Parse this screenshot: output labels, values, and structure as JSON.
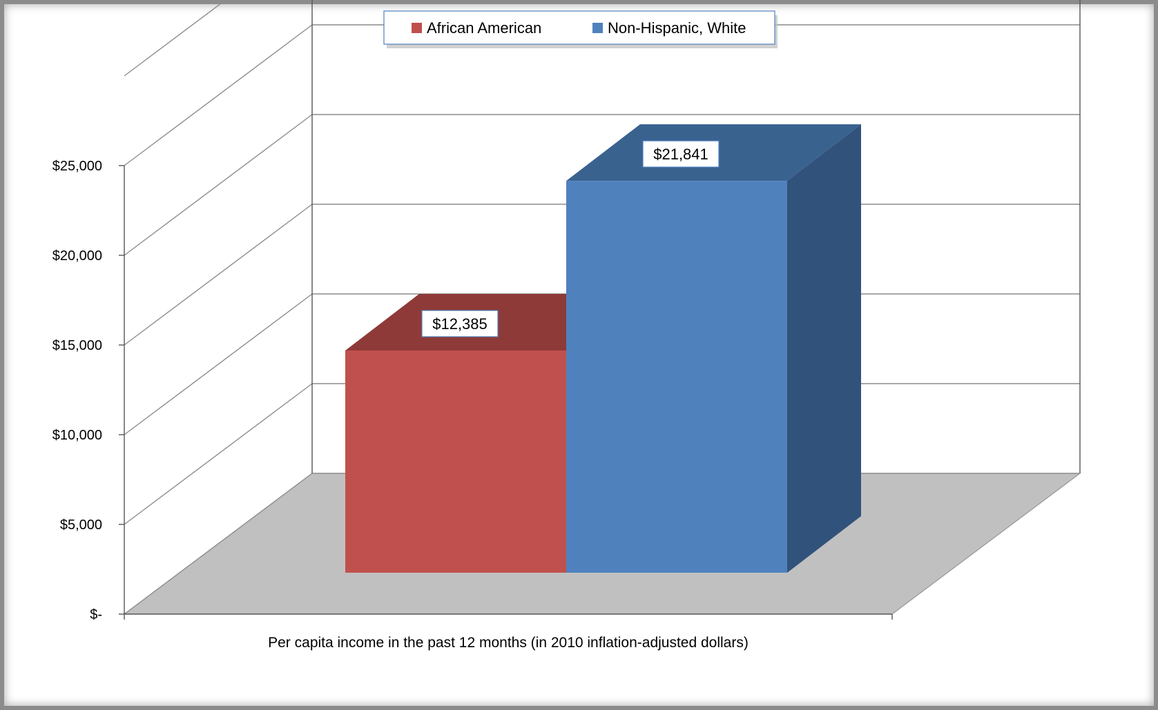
{
  "chart_data": {
    "type": "bar",
    "title": "",
    "subtitle": "",
    "categories": [
      "Per capita income in the past 12 months (in 2010 inflation-adjusted dollars)"
    ],
    "series": [
      {
        "name": "African American",
        "values": [
          12385
        ],
        "data_label": "$12,385",
        "color": "#C0504D",
        "top_color": "#8E3A38",
        "side_color": "#7A3230"
      },
      {
        "name": "Non-Hispanic, White",
        "values": [
          21841
        ],
        "data_label": "$21,841",
        "color": "#4F81BD",
        "top_color": "#3A628F",
        "side_color": "#31527A"
      }
    ],
    "xlabel": "",
    "ylabel": "",
    "ylim": [
      0,
      25000
    ],
    "yticks": [
      0,
      5000,
      10000,
      15000,
      20000,
      25000
    ],
    "ytick_labels": [
      "$-",
      "$5,000",
      "$10,000",
      "$15,000",
      "$20,000",
      "$25,000"
    ],
    "grid": true,
    "legend_position": "top",
    "three_d": true,
    "floor_color": "#C0C0C0"
  }
}
